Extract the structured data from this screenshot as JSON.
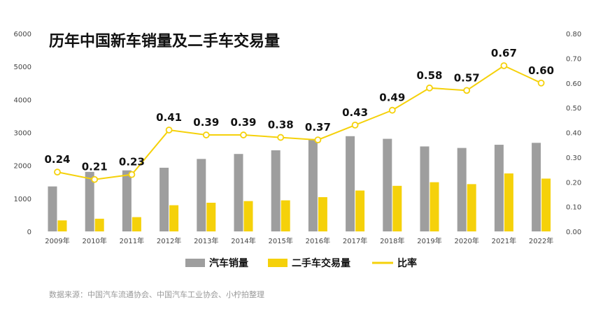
{
  "title": "历年中国新车销量及二手车交易量",
  "source": "数据来源：中国汽车流通协会、中国汽车工业协会、小柠拍整理",
  "colors": {
    "new_car": "#9e9e9e",
    "used_car": "#f5d10a",
    "ratio": "#f5d10a"
  },
  "chart_data": {
    "type": "bar",
    "categories": [
      "2009年",
      "2010年",
      "2011年",
      "2012年",
      "2013年",
      "2014年",
      "2015年",
      "2016年",
      "2017年",
      "2018年",
      "2019年",
      "2020年",
      "2021年",
      "2022年"
    ],
    "series": [
      {
        "name": "汽车销量",
        "type": "bar",
        "axis": "left",
        "values": [
          1364,
          1806,
          1851,
          1931,
          2198,
          2349,
          2460,
          2803,
          2888,
          2808,
          2577,
          2531,
          2628,
          2686
        ]
      },
      {
        "name": "二手车交易量",
        "type": "bar",
        "axis": "left",
        "values": [
          334,
          385,
          433,
          794,
          870,
          920,
          942,
          1039,
          1240,
          1382,
          1492,
          1434,
          1758,
          1602
        ]
      },
      {
        "name": "比率",
        "type": "line",
        "axis": "right",
        "values": [
          0.24,
          0.21,
          0.23,
          0.41,
          0.39,
          0.39,
          0.38,
          0.37,
          0.43,
          0.49,
          0.58,
          0.57,
          0.67,
          0.6
        ],
        "labels": [
          "0.24",
          "0.21",
          "0.23",
          "0.41",
          "0.39",
          "0.39",
          "0.38",
          "0.37",
          "0.43",
          "0.49",
          "0.58",
          "0.57",
          "0.67",
          "0.60"
        ]
      }
    ],
    "y_left": {
      "lim": [
        0,
        6000
      ],
      "ticks": [
        "0",
        "1000",
        "2000",
        "3000",
        "4000",
        "5000",
        "6000"
      ]
    },
    "y_right": {
      "lim": [
        0,
        0.8
      ],
      "ticks": [
        "0.00",
        "0.10",
        "0.20",
        "0.30",
        "0.40",
        "0.50",
        "0.60",
        "0.70",
        "0.80"
      ]
    },
    "grid": false,
    "legend_position": "bottom"
  }
}
